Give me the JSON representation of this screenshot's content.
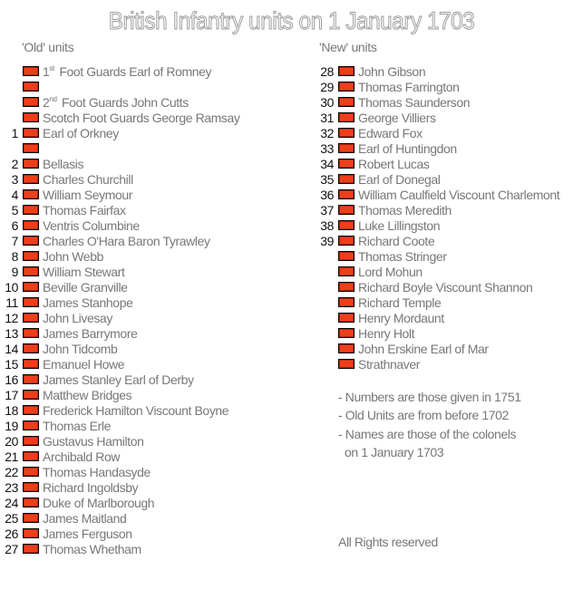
{
  "title": "British Infantry units on 1 January 1703",
  "old_units": {
    "heading": "'Old' units",
    "items": [
      {
        "num": "",
        "pre": "1",
        "sup": "st",
        "label": "Foot Guards Earl of Romney"
      },
      {
        "num": "",
        "label": ""
      },
      {
        "num": "",
        "pre": "2",
        "sup": "nd",
        "label": "Foot Guards John Cutts"
      },
      {
        "num": "",
        "label": "Scotch Foot Guards George Ramsay"
      },
      {
        "num": "1",
        "label": "Earl of Orkney"
      },
      {
        "num": "",
        "label": ""
      },
      {
        "num": "2",
        "label": "Bellasis"
      },
      {
        "num": "3",
        "label": "Charles Churchill"
      },
      {
        "num": "4",
        "label": "William Seymour"
      },
      {
        "num": "5",
        "label": "Thomas Fairfax"
      },
      {
        "num": "6",
        "label": "Ventris Columbine"
      },
      {
        "num": "7",
        "label": "Charles O'Hara Baron Tyrawley"
      },
      {
        "num": "8",
        "label": "John Webb"
      },
      {
        "num": "9",
        "label": "William Stewart"
      },
      {
        "num": "10",
        "label": "Beville Granville"
      },
      {
        "num": "11",
        "label": "James Stanhope"
      },
      {
        "num": "12",
        "label": "John Livesay"
      },
      {
        "num": "13",
        "label": "James Barrymore"
      },
      {
        "num": "14",
        "label": "John Tidcomb"
      },
      {
        "num": "15",
        "label": "Emanuel Howe"
      },
      {
        "num": "16",
        "label": "James Stanley Earl of Derby"
      },
      {
        "num": "17",
        "label": "Matthew Bridges"
      },
      {
        "num": "18",
        "label": "Frederick Hamilton Viscount Boyne"
      },
      {
        "num": "19",
        "label": "Thomas Erle"
      },
      {
        "num": "20",
        "label": "Gustavus Hamilton"
      },
      {
        "num": "21",
        "label": "Archibald Row"
      },
      {
        "num": "22",
        "label": "Thomas Handasyde"
      },
      {
        "num": "23",
        "label": "Richard Ingoldsby"
      },
      {
        "num": "24",
        "label": "Duke of Marlborough"
      },
      {
        "num": "25",
        "label": "James Maitland"
      },
      {
        "num": "26",
        "label": "James Ferguson"
      },
      {
        "num": "27",
        "label": "Thomas Whetham"
      }
    ]
  },
  "new_units": {
    "heading": "'New' units",
    "items": [
      {
        "num": "28",
        "label": "John Gibson"
      },
      {
        "num": "29",
        "label": "Thomas Farrington"
      },
      {
        "num": "30",
        "label": "Thomas Saunderson"
      },
      {
        "num": "31",
        "label": "George Villiers"
      },
      {
        "num": "32",
        "label": "Edward Fox"
      },
      {
        "num": "33",
        "label": "Earl of Huntingdon"
      },
      {
        "num": "34",
        "label": "Robert Lucas"
      },
      {
        "num": "35",
        "label": "Earl of Donegal"
      },
      {
        "num": "36",
        "label": "William Caulfield Viscount Charlemont"
      },
      {
        "num": "37",
        "label": "Thomas Meredith"
      },
      {
        "num": "38",
        "label": "Luke Lillingston"
      },
      {
        "num": "39",
        "label": "Richard Coote"
      },
      {
        "num": "",
        "label": "Thomas Stringer"
      },
      {
        "num": "",
        "label": "Lord Mohun"
      },
      {
        "num": "",
        "label": "Richard Boyle Viscount Shannon"
      },
      {
        "num": "",
        "label": "Richard Temple"
      },
      {
        "num": "",
        "label": "Henry Mordaunt"
      },
      {
        "num": "",
        "label": "Henry Holt"
      },
      {
        "num": "",
        "label": "John Erskine Earl of Mar"
      },
      {
        "num": "",
        "label": "Strathnaver"
      }
    ]
  },
  "notes": [
    "- Numbers are those given in 1751",
    "- Old Units are from before 1702",
    "- Names are those of the colonels",
    "  on 1 January 1703"
  ],
  "copyright": "All Rights reserved",
  "colors": {
    "swatch": "#ee3e1a",
    "text": "#777777",
    "number": "#111111"
  }
}
